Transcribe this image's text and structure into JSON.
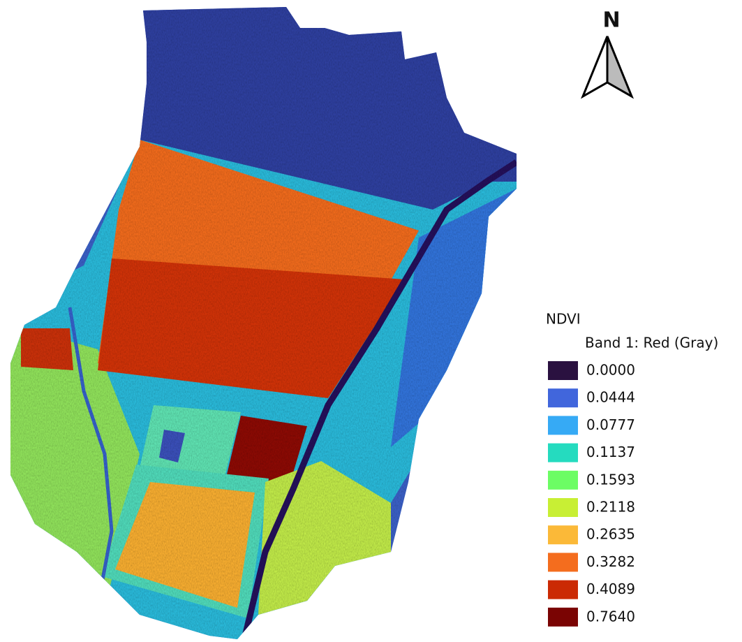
{
  "north_label": "N",
  "legend": {
    "title": "NDVI",
    "subtitle": "Band 1: Red (Gray)",
    "items": [
      {
        "label": "0.0000",
        "color": "#2a1140"
      },
      {
        "label": "0.0444",
        "color": "#4166dc"
      },
      {
        "label": "0.0777",
        "color": "#36aaf5"
      },
      {
        "label": "0.1137",
        "color": "#25dbbf"
      },
      {
        "label": "0.1593",
        "color": "#6cfd64"
      },
      {
        "label": "0.2118",
        "color": "#c8ef34"
      },
      {
        "label": "0.2635",
        "color": "#fbb938"
      },
      {
        "label": "0.3282",
        "color": "#f46d1e"
      },
      {
        "label": "0.4089",
        "color": "#cb2a04"
      },
      {
        "label": "0.7640",
        "color": "#7a0403"
      }
    ]
  }
}
